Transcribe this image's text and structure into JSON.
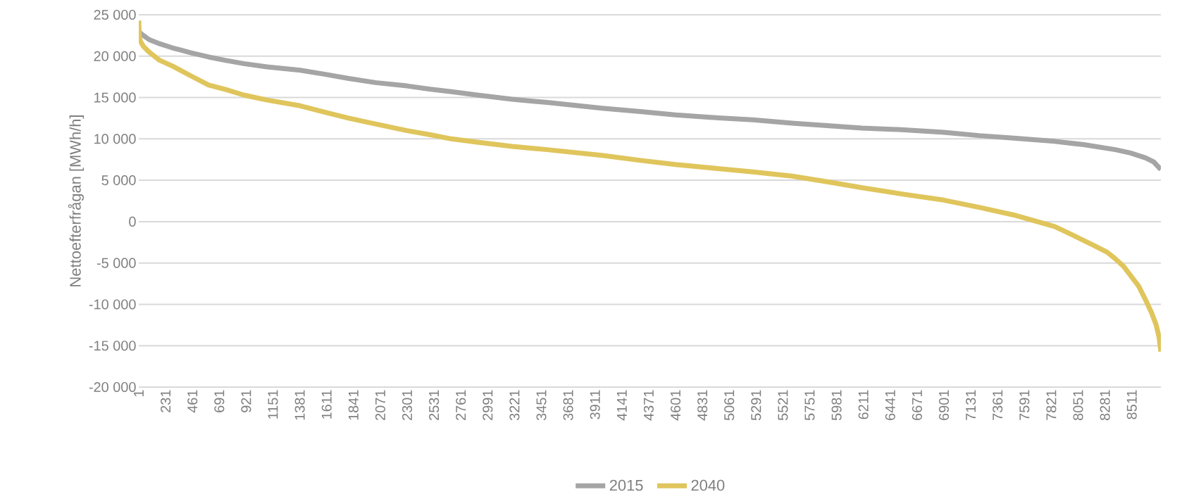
{
  "chart_data": {
    "type": "line",
    "ylabel": "Nettoefterfrågan  [MWh/h]",
    "xlim": [
      1,
      8760
    ],
    "xticks": [
      1,
      231,
      461,
      691,
      921,
      1151,
      1381,
      1611,
      1841,
      2071,
      2301,
      2531,
      2761,
      2991,
      3221,
      3451,
      3681,
      3911,
      4141,
      4371,
      4601,
      4831,
      5061,
      5291,
      5521,
      5751,
      5981,
      6211,
      6441,
      6671,
      6901,
      7131,
      7361,
      7591,
      7821,
      8051,
      8281,
      8511
    ],
    "ylim": [
      -20000,
      25000
    ],
    "yticks": [
      {
        "value": -20000,
        "label": "-20 000"
      },
      {
        "value": -15000,
        "label": "-15 000"
      },
      {
        "value": -10000,
        "label": "-10 000"
      },
      {
        "value": -5000,
        "label": "-5 000"
      },
      {
        "value": 0,
        "label": "0"
      },
      {
        "value": 5000,
        "label": "5 000"
      },
      {
        "value": 10000,
        "label": "10 000"
      },
      {
        "value": 15000,
        "label": "15 000"
      },
      {
        "value": 20000,
        "label": "20 000"
      },
      {
        "value": 25000,
        "label": "25 000"
      }
    ],
    "grid": "y",
    "legend": "bottom",
    "line_style": "solid",
    "marker": "none",
    "series": [
      {
        "name": "2015",
        "color": "#a5a5a5",
        "x": [
          1,
          30,
          90,
          180,
          290,
          450,
          600,
          740,
          900,
          1100,
          1384,
          1600,
          1800,
          2030,
          2300,
          2500,
          2680,
          2900,
          3200,
          3500,
          3970,
          4300,
          4600,
          4900,
          5265,
          5600,
          5900,
          6200,
          6560,
          6900,
          7200,
          7500,
          7850,
          8100,
          8370,
          8500,
          8630,
          8700,
          8760
        ],
        "values": [
          23000,
          22600,
          22000,
          21500,
          21000,
          20400,
          19900,
          19500,
          19100,
          18700,
          18300,
          17800,
          17300,
          16800,
          16400,
          16000,
          15700,
          15300,
          14800,
          14400,
          13700,
          13300,
          12900,
          12600,
          12300,
          11900,
          11600,
          11300,
          11100,
          10800,
          10400,
          10100,
          9700,
          9300,
          8700,
          8300,
          7700,
          7200,
          6300
        ]
      },
      {
        "name": "2040",
        "color": "#dfc55c",
        "x": [
          1,
          5,
          15,
          40,
          90,
          180,
          290,
          450,
          600,
          740,
          900,
          1100,
          1384,
          1600,
          1800,
          2030,
          2300,
          2500,
          2680,
          2900,
          3200,
          3500,
          3970,
          4300,
          4600,
          4900,
          5265,
          5600,
          5910,
          6200,
          6560,
          6900,
          7210,
          7500,
          7850,
          8000,
          8175,
          8300,
          8370,
          8440,
          8500,
          8570,
          8630,
          8680,
          8720,
          8745,
          8760
        ],
        "values": [
          24300,
          22500,
          21800,
          21200,
          20500,
          19500,
          18800,
          17600,
          16500,
          16000,
          15300,
          14700,
          14000,
          13200,
          12500,
          11800,
          11000,
          10500,
          10000,
          9600,
          9100,
          8700,
          8000,
          7400,
          6900,
          6500,
          6000,
          5500,
          4800,
          4100,
          3300,
          2600,
          1700,
          800,
          -600,
          -1600,
          -2800,
          -3700,
          -4500,
          -5400,
          -6500,
          -7800,
          -9500,
          -11000,
          -12500,
          -14000,
          -15700
        ]
      }
    ]
  }
}
